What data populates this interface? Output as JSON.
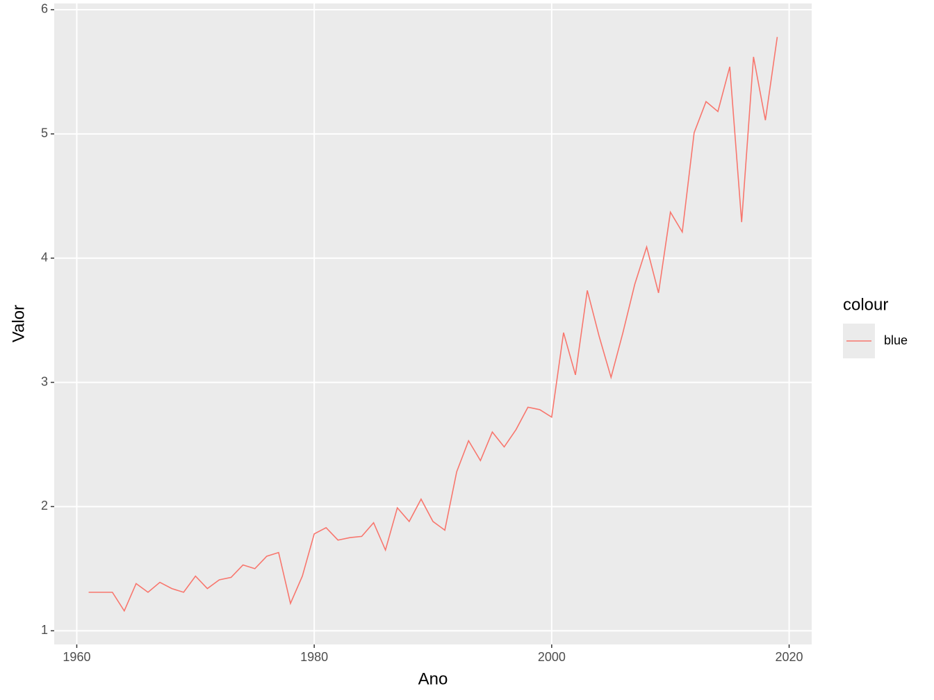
{
  "chart_data": {
    "type": "line",
    "x_label": "Ano",
    "y_label": "Valor",
    "x": [
      1961,
      1962,
      1963,
      1964,
      1965,
      1966,
      1967,
      1968,
      1969,
      1970,
      1971,
      1972,
      1973,
      1974,
      1975,
      1976,
      1977,
      1978,
      1979,
      1980,
      1981,
      1982,
      1983,
      1984,
      1985,
      1986,
      1987,
      1988,
      1989,
      1990,
      1991,
      1992,
      1993,
      1994,
      1995,
      1996,
      1997,
      1998,
      1999,
      2000,
      2001,
      2002,
      2003,
      2004,
      2005,
      2006,
      2007,
      2008,
      2009,
      2010,
      2011,
      2012,
      2013,
      2014,
      2015,
      2016,
      2017,
      2018,
      2019
    ],
    "series": [
      {
        "name": "blue",
        "color": "#F8766D",
        "values": [
          1.31,
          1.31,
          1.31,
          1.16,
          1.38,
          1.31,
          1.39,
          1.34,
          1.31,
          1.44,
          1.34,
          1.41,
          1.43,
          1.53,
          1.5,
          1.6,
          1.63,
          1.22,
          1.44,
          1.78,
          1.83,
          1.73,
          1.75,
          1.76,
          1.87,
          1.65,
          1.99,
          1.88,
          2.06,
          1.88,
          1.81,
          2.28,
          2.53,
          2.37,
          2.6,
          2.48,
          2.62,
          2.8,
          2.78,
          2.72,
          3.4,
          3.06,
          3.74,
          3.37,
          3.04,
          3.4,
          3.79,
          4.09,
          3.72,
          4.37,
          4.21,
          5.01,
          5.26,
          5.18,
          5.54,
          4.29,
          5.62,
          5.11,
          5.78
        ]
      }
    ],
    "legend_title": "colour",
    "xlim": [
      1958.1,
      2021.9
    ],
    "xticks": [
      1960,
      1980,
      2000,
      2020
    ],
    "ylim": [
      0.89,
      6.05
    ],
    "yticks": [
      1,
      2,
      3,
      4,
      5,
      6
    ],
    "grid": true
  }
}
